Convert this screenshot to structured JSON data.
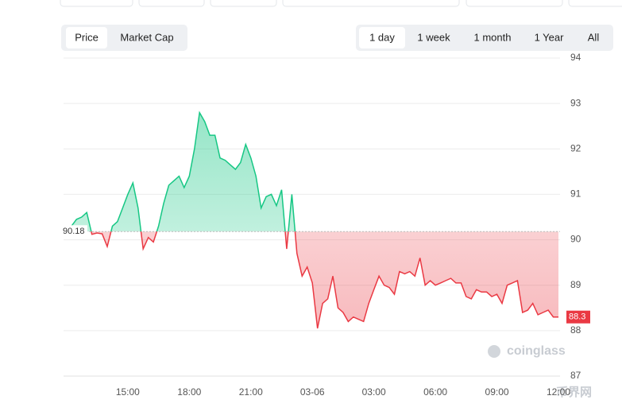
{
  "controls": {
    "metric_tabs": [
      "Price",
      "Market Cap"
    ],
    "active_metric": 0,
    "range_tabs": [
      "1 day",
      "1 week",
      "1 month",
      "1 Year",
      "All"
    ],
    "active_range": 0
  },
  "watermark": "coinglass",
  "site_mark": "币界网",
  "chart_data": {
    "type": "line",
    "categories": [
      null,
      null,
      null,
      null,
      null,
      null,
      null,
      null,
      null,
      null,
      null,
      null,
      "15:00",
      null,
      null,
      null,
      null,
      null,
      null,
      null,
      null,
      null,
      null,
      null,
      "18:00",
      null,
      null,
      null,
      null,
      null,
      null,
      null,
      null,
      null,
      null,
      null,
      "21:00",
      null,
      null,
      null,
      null,
      null,
      null,
      null,
      null,
      null,
      null,
      null,
      "03-06",
      null,
      null,
      null,
      null,
      null,
      null,
      null,
      null,
      null,
      null,
      null,
      "03:00",
      null,
      null,
      null,
      null,
      null,
      null,
      null,
      null,
      null,
      null,
      null,
      "06:00",
      null,
      null,
      null,
      null,
      null,
      null,
      null,
      null,
      null,
      null,
      null,
      "09:00",
      null,
      null,
      null,
      null,
      null,
      null,
      null,
      null,
      null,
      null,
      null,
      "12:00"
    ],
    "values": [
      90.2,
      90.3,
      90.45,
      90.5,
      90.6,
      90.12,
      90.15,
      90.13,
      89.85,
      90.3,
      90.4,
      90.7,
      91.0,
      91.25,
      90.7,
      89.8,
      90.05,
      89.95,
      90.3,
      90.8,
      91.2,
      91.3,
      91.4,
      91.15,
      91.4,
      92.0,
      92.8,
      92.6,
      92.3,
      92.3,
      91.8,
      91.75,
      91.65,
      91.55,
      91.7,
      92.1,
      91.8,
      91.4,
      90.7,
      90.95,
      91.0,
      90.75,
      91.1,
      89.8,
      91.0,
      89.7,
      89.2,
      89.4,
      89.05,
      88.05,
      88.6,
      88.7,
      89.2,
      88.5,
      88.4,
      88.2,
      88.3,
      88.25,
      88.2,
      88.6,
      88.9,
      89.2,
      89.0,
      88.95,
      88.8,
      89.3,
      89.25,
      89.3,
      89.2,
      89.6,
      89.0,
      89.1,
      89.0,
      89.05,
      89.1,
      89.15,
      89.05,
      89.05,
      88.75,
      88.7,
      88.9,
      88.85,
      88.85,
      88.75,
      88.8,
      88.6,
      89.0,
      89.05,
      89.1,
      88.4,
      88.45,
      88.6,
      88.35,
      88.4,
      88.45,
      88.3,
      88.3
    ],
    "baseline": 90.18,
    "up_color": "#16c784",
    "down_color": "#ea3943",
    "ylim": [
      87,
      94
    ],
    "yticks": [
      87,
      88,
      89,
      90,
      91,
      92,
      93,
      94
    ],
    "grid": true
  }
}
